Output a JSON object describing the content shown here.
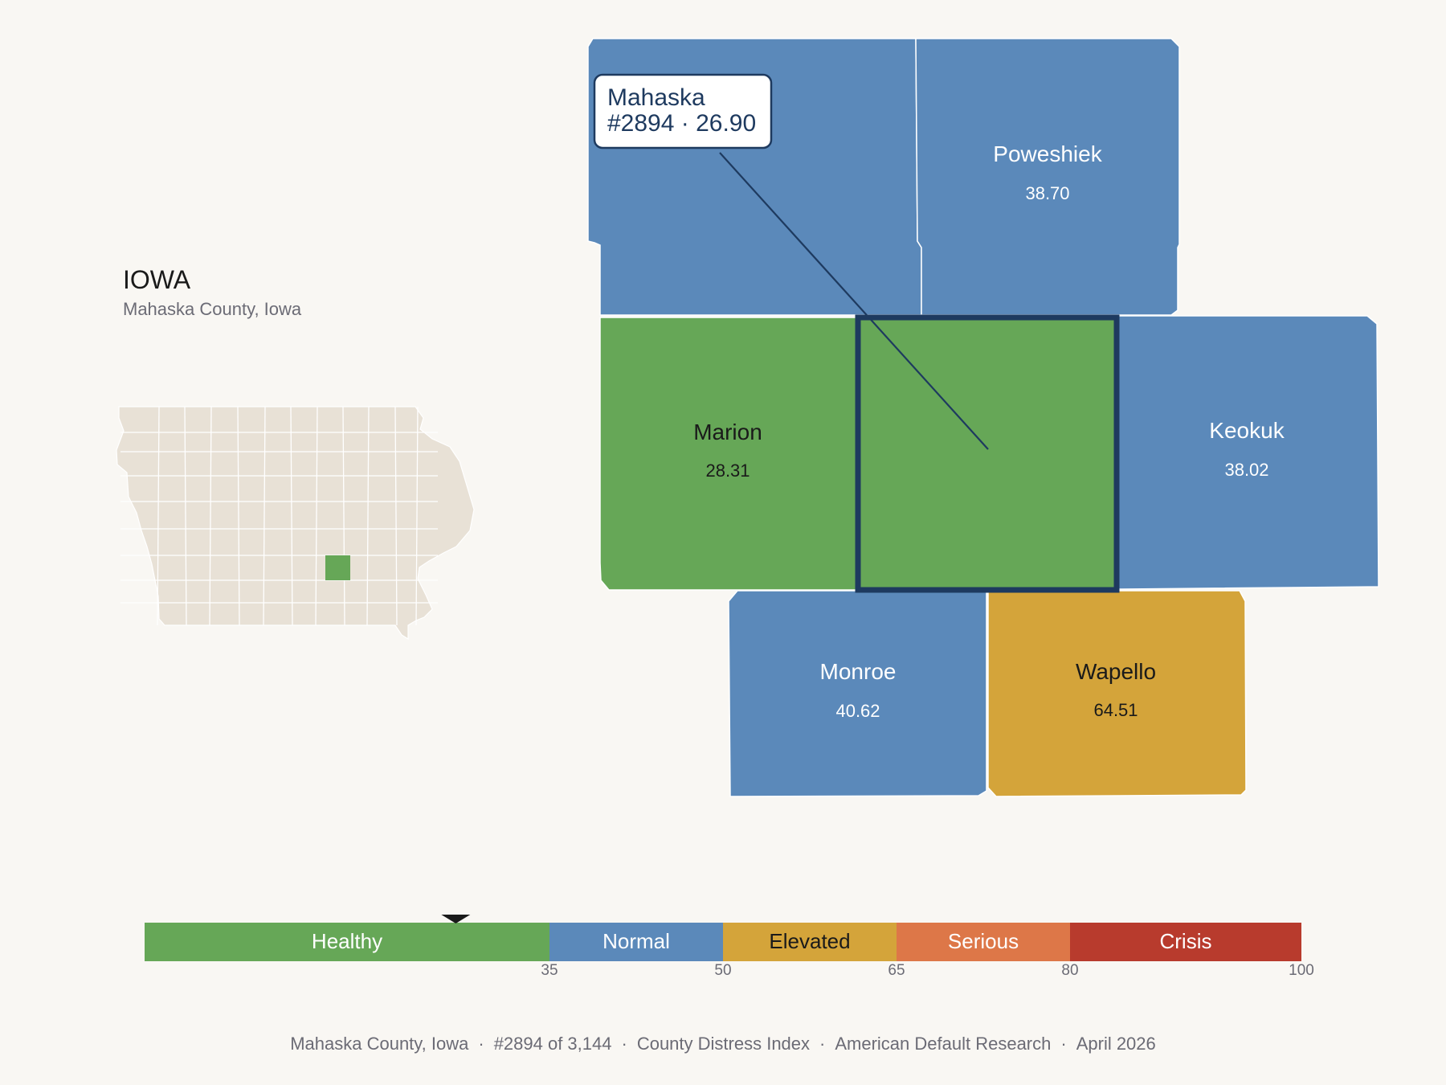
{
  "header": {
    "state": "IOWA",
    "subtitle": "Mahaska County, Iowa"
  },
  "tooltip": {
    "name": "Mahaska",
    "detail": "#2894 · 26.90"
  },
  "colors": {
    "healthy": "#66a757",
    "normal": "#5b89ba",
    "elevated": "#d4a43a",
    "serious": "#dd7748",
    "crisis": "#b83b2d",
    "highlight_border": "#1e3a5f",
    "state_fill": "#e8e1d6",
    "background": "#f9f7f3"
  },
  "counties": [
    {
      "name": "",
      "value": "",
      "category": "normal",
      "label_color": "#ffffff"
    },
    {
      "name": "Poweshiek",
      "value": "38.70",
      "category": "normal",
      "label_color": "#ffffff"
    },
    {
      "name": "Marion",
      "value": "28.31",
      "category": "healthy",
      "label_color": "#1a1a1a"
    },
    {
      "name": "",
      "value": "",
      "category": "healthy",
      "label_color": "#1a1a1a"
    },
    {
      "name": "Keokuk",
      "value": "38.02",
      "category": "normal",
      "label_color": "#ffffff"
    },
    {
      "name": "Monroe",
      "value": "40.62",
      "category": "normal",
      "label_color": "#ffffff"
    },
    {
      "name": "Wapello",
      "value": "64.51",
      "category": "elevated",
      "label_color": "#1a1a1a"
    }
  ],
  "legend": {
    "segments": [
      {
        "label": "Healthy",
        "from": 0,
        "to": 35,
        "category": "healthy",
        "text_color": "#ffffff"
      },
      {
        "label": "Normal",
        "from": 35,
        "to": 50,
        "category": "normal",
        "text_color": "#ffffff"
      },
      {
        "label": "Elevated",
        "from": 50,
        "to": 65,
        "category": "elevated",
        "text_color": "#1a1a1a"
      },
      {
        "label": "Serious",
        "from": 65,
        "to": 80,
        "category": "serious",
        "text_color": "#ffffff"
      },
      {
        "label": "Crisis",
        "from": 80,
        "to": 100,
        "category": "crisis",
        "text_color": "#ffffff"
      }
    ],
    "ticks": [
      "35",
      "50",
      "65",
      "80",
      "100"
    ],
    "marker_value": 26.9
  },
  "footer": {
    "location": "Mahaska County, Iowa",
    "rank": "#2894 of 3,144",
    "index": "County Distress Index",
    "source": "American Default Research",
    "date": "April 2026"
  }
}
